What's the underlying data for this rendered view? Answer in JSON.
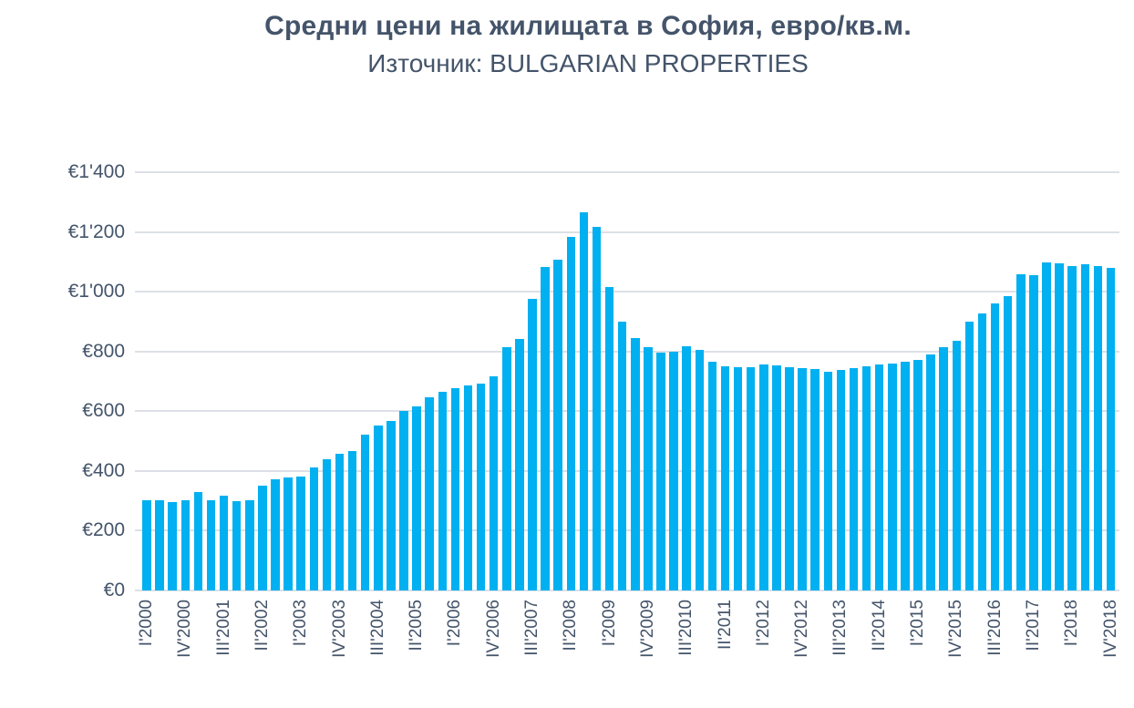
{
  "header": {
    "title": "Средни цени на жилищата в София, евро/кв.м.",
    "subtitle": "Източник: BULGARIAN PROPERTIES"
  },
  "colors": {
    "bar": "#00B0F0",
    "text": "#44546A",
    "gridline": "#DCE0E6",
    "background": "#FFFFFF"
  },
  "chart_data": {
    "type": "bar",
    "title": "Средни цени на жилищата в София, евро/кв.м.",
    "subtitle": "Източник: BULGARIAN PROPERTIES",
    "xlabel": "",
    "ylabel": "",
    "ylim": [
      0,
      1400
    ],
    "ytick_step": 200,
    "ytick_labels": [
      "€0",
      "€200",
      "€400",
      "€600",
      "€800",
      "€1'000",
      "€1'200",
      "€1'400"
    ],
    "xtick_every": 3,
    "grid": "horizontal",
    "legend_position": "none",
    "bar_color": "#00B0F0",
    "categories": [
      "I'2000",
      "II'2000",
      "III'2000",
      "IV'2000",
      "I'2001",
      "II'2001",
      "III'2001",
      "IV'2001",
      "I'2002",
      "II'2002",
      "III'2002",
      "IV'2002",
      "I'2003",
      "II'2003",
      "III'2003",
      "IV'2003",
      "I'2004",
      "II'2004",
      "III'2004",
      "IV'2004",
      "I'2005",
      "II'2005",
      "III'2005",
      "IV'2005",
      "I'2006",
      "II'2006",
      "III'2006",
      "IV'2006",
      "I'2007",
      "II'2007",
      "III'2007",
      "IV'2007",
      "I'2008",
      "II'2008",
      "III'2008",
      "IV'2008",
      "I'2009",
      "II'2009",
      "III'2009",
      "IV'2009",
      "I'2010",
      "II'2010",
      "III'2010",
      "IV'2010",
      "I'2011",
      "II'2011",
      "III'2011",
      "IV'2011",
      "I'2012",
      "II'2012",
      "III'2012",
      "IV'2012",
      "I'2013",
      "II'2013",
      "III'2013",
      "IV'2013",
      "I'2014",
      "II'2014",
      "III'2014",
      "IV'2014",
      "I'2015",
      "II'2015",
      "III'2015",
      "IV'2015",
      "I'2016",
      "II'2016",
      "III'2016",
      "IV'2016",
      "I'2017",
      "II'2017",
      "III'2017",
      "IV'2017",
      "I'2018",
      "II'2018",
      "III'2018",
      "IV'2018"
    ],
    "values": [
      301,
      301,
      296,
      303,
      329,
      303,
      316,
      300,
      303,
      351,
      371,
      377,
      381,
      412,
      440,
      457,
      466,
      523,
      551,
      568,
      601,
      617,
      648,
      666,
      678,
      685,
      691,
      717,
      813,
      843,
      977,
      1082,
      1107,
      1184,
      1266,
      1216,
      1016,
      899,
      844,
      814,
      797,
      798,
      817,
      805,
      765,
      751,
      748,
      748,
      755,
      752,
      748,
      743,
      740,
      733,
      737,
      743,
      751,
      757,
      760,
      765,
      773,
      790,
      813,
      836,
      899,
      927,
      960,
      985,
      1058,
      1056,
      1097,
      1094,
      1087,
      1092,
      1087,
      1080
    ]
  }
}
